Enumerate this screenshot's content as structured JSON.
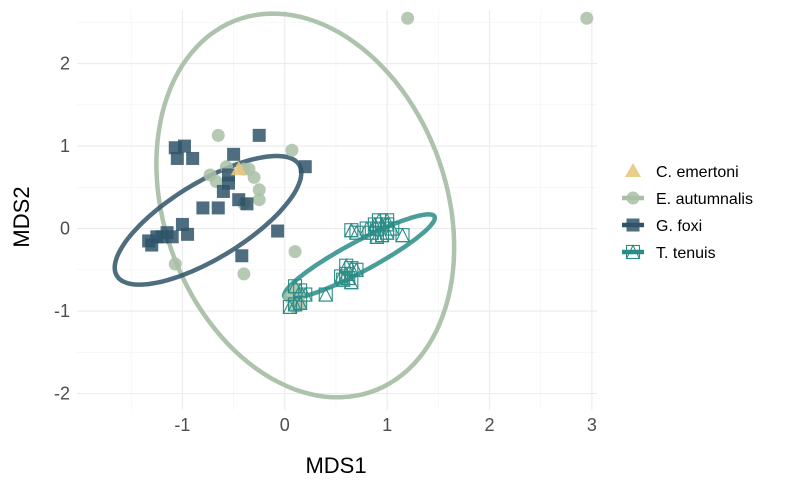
{
  "chart_data": {
    "type": "scatter",
    "title": "",
    "xlabel": "MDS1",
    "ylabel": "MDS2",
    "xlim": [
      -2.03,
      3.05
    ],
    "ylim": [
      -2.2,
      2.65
    ],
    "x_ticks": [
      -1,
      0,
      1,
      2,
      3
    ],
    "x_tick_labels": [
      "-1",
      "0",
      "1",
      "2",
      "3"
    ],
    "y_ticks": [
      -2,
      -1,
      0,
      1,
      2
    ],
    "y_tick_labels": [
      "-2",
      "-1",
      "0",
      "1",
      "2"
    ],
    "grid": true,
    "legend_position": "right",
    "series": [
      {
        "name": "C. emertoni",
        "color": "#E8C77E",
        "marker": "triangle",
        "points": [
          [
            -0.45,
            0.72
          ]
        ],
        "ellipse": null
      },
      {
        "name": "E. autumnalis",
        "color": "#A9C0A6",
        "marker": "circle",
        "points": [
          [
            1.2,
            2.55
          ],
          [
            2.95,
            2.55
          ],
          [
            -0.65,
            1.13
          ],
          [
            0.07,
            0.95
          ],
          [
            -0.57,
            0.75
          ],
          [
            -0.73,
            0.65
          ],
          [
            -0.3,
            0.62
          ],
          [
            -0.67,
            0.57
          ],
          [
            -0.4,
            0.72
          ],
          [
            -0.35,
            0.72
          ],
          [
            -0.25,
            0.47
          ],
          [
            -0.25,
            0.35
          ],
          [
            -0.4,
            0.3
          ],
          [
            0.1,
            -0.28
          ],
          [
            -1.07,
            -0.43
          ],
          [
            -0.4,
            -0.55
          ],
          [
            0.1,
            -0.75
          ],
          [
            0.15,
            -0.92
          ],
          [
            0.15,
            -0.8
          ],
          [
            0.05,
            -0.83
          ],
          [
            0.1,
            -0.95
          ]
        ],
        "ellipse": {
          "cx": 0.2,
          "cy": 0.28,
          "a": 2.36,
          "b": 1.4,
          "angle_deg": -78
        }
      },
      {
        "name": "G. foxi",
        "color": "#2F5468",
        "marker": "square",
        "points": [
          [
            -0.25,
            1.13
          ],
          [
            -1.07,
            0.98
          ],
          [
            -0.98,
            1.0
          ],
          [
            -0.5,
            0.9
          ],
          [
            -1.05,
            0.85
          ],
          [
            -0.9,
            0.85
          ],
          [
            -0.55,
            0.65
          ],
          [
            -0.55,
            0.55
          ],
          [
            0.2,
            0.75
          ],
          [
            -0.6,
            0.45
          ],
          [
            -0.45,
            0.35
          ],
          [
            -0.65,
            0.25
          ],
          [
            -0.8,
            0.25
          ],
          [
            -0.37,
            0.3
          ],
          [
            -1.0,
            0.05
          ],
          [
            -1.15,
            -0.05
          ],
          [
            -1.2,
            -0.1
          ],
          [
            -1.25,
            -0.1
          ],
          [
            -1.1,
            -0.1
          ],
          [
            -0.95,
            -0.07
          ],
          [
            -1.3,
            -0.2
          ],
          [
            -1.33,
            -0.15
          ],
          [
            -0.07,
            -0.03
          ],
          [
            -0.42,
            -0.33
          ]
        ],
        "ellipse": {
          "cx": -0.75,
          "cy": 0.1,
          "a": 1.12,
          "b": 0.43,
          "angle_deg": 39
        }
      },
      {
        "name": "T. tenuis",
        "color": "#2A8C86",
        "marker": "square-triangle",
        "points": [
          [
            0.95,
            0.05
          ],
          [
            0.9,
            0.0
          ],
          [
            1.0,
            -0.05
          ],
          [
            0.85,
            -0.05
          ],
          [
            0.88,
            0.05
          ],
          [
            0.92,
            0.1
          ],
          [
            1.0,
            0.05
          ],
          [
            1.05,
            0.0
          ],
          [
            0.8,
            0.0
          ],
          [
            0.95,
            -0.08
          ],
          [
            1.15,
            -0.08
          ],
          [
            0.65,
            -0.02
          ],
          [
            0.7,
            -0.05
          ],
          [
            1.0,
            0.1
          ],
          [
            0.9,
            -0.1
          ],
          [
            0.6,
            -0.45
          ],
          [
            0.6,
            -0.55
          ],
          [
            0.65,
            -0.48
          ],
          [
            0.62,
            -0.6
          ],
          [
            0.7,
            -0.5
          ],
          [
            0.55,
            -0.58
          ],
          [
            0.57,
            -0.62
          ],
          [
            0.65,
            -0.65
          ],
          [
            0.4,
            -0.8
          ],
          [
            0.2,
            -0.8
          ],
          [
            0.15,
            -0.75
          ],
          [
            0.1,
            -0.7
          ],
          [
            0.1,
            -0.92
          ],
          [
            0.05,
            -0.95
          ],
          [
            0.15,
            -0.9
          ]
        ],
        "ellipse": {
          "cx": 0.73,
          "cy": -0.34,
          "a": 0.88,
          "b": 0.17,
          "angle_deg": 34
        }
      }
    ]
  }
}
